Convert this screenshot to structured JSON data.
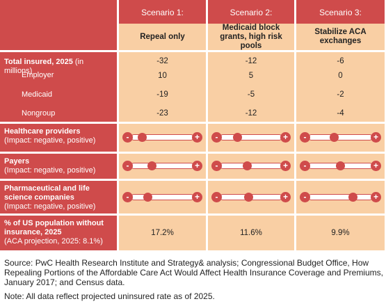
{
  "header": {
    "scenarios": [
      {
        "title": "Scenario 1:",
        "subtitle": "Repeal only"
      },
      {
        "title": "Scenario 2:",
        "subtitle": "Medicaid block grants, high risk pools"
      },
      {
        "title": "Scenario 3:",
        "subtitle": "Stabilize ACA exchanges"
      }
    ]
  },
  "rows": {
    "total_insured": {
      "label_bold": "Total insured, 2025",
      "label_rest": " (in millions)",
      "values": [
        "-32",
        "-12",
        "-6"
      ]
    },
    "employer": {
      "label": "Employer",
      "values": [
        "10",
        "5",
        "0"
      ]
    },
    "medicaid": {
      "label": "Medicaid",
      "values": [
        "-19",
        "-5",
        "-2"
      ]
    },
    "nongroup": {
      "label": "Nongroup",
      "values": [
        "-23",
        "-12",
        "-4"
      ]
    },
    "healthcare_providers": {
      "label_bold": "Healthcare providers",
      "label_sub": "(Impact: negative, positive)",
      "impact_levels": [
        0.08,
        0.22,
        0.38
      ]
    },
    "payers": {
      "label_bold": "Payers",
      "label_sub": "(Impact: negative, positive)",
      "impact_levels": [
        0.28,
        0.42,
        0.5
      ]
    },
    "pharma": {
      "label_bold": "Pharmaceutical and life science companies",
      "label_sub": "(Impact: negative, positive)",
      "impact_levels": [
        0.2,
        0.45,
        0.75
      ]
    },
    "uninsured": {
      "label_bold": "% of US population without insurance, 2025",
      "label_sub": "(ACA projection, 2025: 8.1%)",
      "values": [
        "17.2%",
        "11.6%",
        "9.9%"
      ]
    }
  },
  "slider_symbols": {
    "minus": "-",
    "plus": "+"
  },
  "footer": {
    "source": "Source: PwC Health Research Institute and Strategy& analysis; Congressional Budget Office, How Repealing Portions of the Affordable Care Act Would Affect Health Insurance Coverage and Premiums, January 2017; and Census data.",
    "note": "Note: All data reflect projected uninsured rate as of 2025."
  },
  "colors": {
    "accent_red": "#cf4b4b",
    "peach": "#f9cfa4"
  }
}
